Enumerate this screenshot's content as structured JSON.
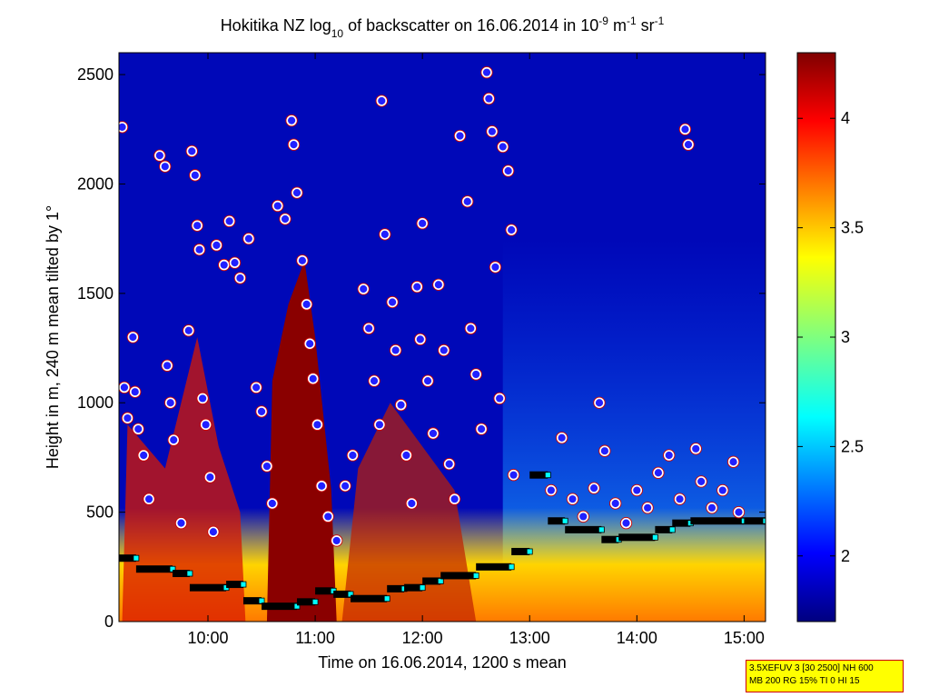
{
  "chart_data": {
    "type": "heatmap",
    "title": {
      "pre": "Hokitika NZ log",
      "sub": "10",
      "mid": " of backscatter on 16.06.2014 in 10",
      "sup1": "-9",
      "post1": " m",
      "sup2": "-1",
      "post2": " sr",
      "sup3": "-1"
    },
    "xlabel": "Time on 16.06.2014, 1200 s mean",
    "ylabel": "Height in m, 240 m mean tilted by 1°",
    "xlim": [
      9.17,
      15.2
    ],
    "ylim": [
      0,
      2600
    ],
    "x_ticks": [
      {
        "value": 10,
        "label": "10:00"
      },
      {
        "value": 11,
        "label": "11:00"
      },
      {
        "value": 12,
        "label": "12:00"
      },
      {
        "value": 13,
        "label": "13:00"
      },
      {
        "value": 14,
        "label": "14:00"
      },
      {
        "value": 15,
        "label": "15:00"
      }
    ],
    "y_ticks": [
      0,
      500,
      1000,
      1500,
      2000,
      2500
    ],
    "colorbar": {
      "range": [
        1.7,
        4.3
      ],
      "ticks": [
        {
          "value": 2,
          "label": "2"
        },
        {
          "value": 2.5,
          "label": "2.5"
        },
        {
          "value": 3,
          "label": "3"
        },
        {
          "value": 3.5,
          "label": "3.5"
        },
        {
          "value": 4,
          "label": "4"
        }
      ]
    },
    "mixing_layer": [
      {
        "x0": 9.17,
        "x1": 9.33,
        "h": 290
      },
      {
        "x0": 9.33,
        "x1": 9.67,
        "h": 240
      },
      {
        "x0": 9.67,
        "x1": 9.83,
        "h": 220
      },
      {
        "x0": 9.83,
        "x1": 10.17,
        "h": 155
      },
      {
        "x0": 10.17,
        "x1": 10.33,
        "h": 170
      },
      {
        "x0": 10.33,
        "x1": 10.5,
        "h": 95
      },
      {
        "x0": 10.5,
        "x1": 10.83,
        "h": 70
      },
      {
        "x0": 10.83,
        "x1": 11.0,
        "h": 90
      },
      {
        "x0": 11.0,
        "x1": 11.17,
        "h": 140
      },
      {
        "x0": 11.17,
        "x1": 11.33,
        "h": 125
      },
      {
        "x0": 11.33,
        "x1": 11.67,
        "h": 105
      },
      {
        "x0": 11.67,
        "x1": 11.83,
        "h": 150
      },
      {
        "x0": 11.83,
        "x1": 12.0,
        "h": 155
      },
      {
        "x0": 12.0,
        "x1": 12.17,
        "h": 185
      },
      {
        "x0": 12.17,
        "x1": 12.5,
        "h": 210
      },
      {
        "x0": 12.5,
        "x1": 12.83,
        "h": 250
      },
      {
        "x0": 12.83,
        "x1": 13.0,
        "h": 320
      },
      {
        "x0": 13.0,
        "x1": 13.17,
        "h": 670
      },
      {
        "x0": 13.17,
        "x1": 13.33,
        "h": 460
      },
      {
        "x0": 13.33,
        "x1": 13.67,
        "h": 420
      },
      {
        "x0": 13.67,
        "x1": 13.83,
        "h": 375
      },
      {
        "x0": 13.83,
        "x1": 14.17,
        "h": 385
      },
      {
        "x0": 14.17,
        "x1": 14.33,
        "h": 420
      },
      {
        "x0": 14.33,
        "x1": 14.5,
        "h": 450
      },
      {
        "x0": 14.5,
        "x1": 15.0,
        "h": 460
      },
      {
        "x0": 15.0,
        "x1": 15.2,
        "h": 460
      }
    ],
    "cloud_points": [
      {
        "x": 9.2,
        "y": 2260
      },
      {
        "x": 9.22,
        "y": 1070
      },
      {
        "x": 9.25,
        "y": 930
      },
      {
        "x": 9.3,
        "y": 1300
      },
      {
        "x": 9.32,
        "y": 1050
      },
      {
        "x": 9.35,
        "y": 880
      },
      {
        "x": 9.4,
        "y": 760
      },
      {
        "x": 9.45,
        "y": 560
      },
      {
        "x": 9.55,
        "y": 2130
      },
      {
        "x": 9.6,
        "y": 2080
      },
      {
        "x": 9.62,
        "y": 1170
      },
      {
        "x": 9.65,
        "y": 1000
      },
      {
        "x": 9.68,
        "y": 830
      },
      {
        "x": 9.75,
        "y": 450
      },
      {
        "x": 9.82,
        "y": 1330
      },
      {
        "x": 9.85,
        "y": 2150
      },
      {
        "x": 9.88,
        "y": 2040
      },
      {
        "x": 9.9,
        "y": 1810
      },
      {
        "x": 9.92,
        "y": 1700
      },
      {
        "x": 9.95,
        "y": 1020
      },
      {
        "x": 9.98,
        "y": 900
      },
      {
        "x": 10.02,
        "y": 660
      },
      {
        "x": 10.05,
        "y": 410
      },
      {
        "x": 10.08,
        "y": 1720
      },
      {
        "x": 10.15,
        "y": 1630
      },
      {
        "x": 10.2,
        "y": 1830
      },
      {
        "x": 10.25,
        "y": 1640
      },
      {
        "x": 10.3,
        "y": 1570
      },
      {
        "x": 10.38,
        "y": 1750
      },
      {
        "x": 10.45,
        "y": 1070
      },
      {
        "x": 10.5,
        "y": 960
      },
      {
        "x": 10.55,
        "y": 710
      },
      {
        "x": 10.6,
        "y": 540
      },
      {
        "x": 10.65,
        "y": 1900
      },
      {
        "x": 10.72,
        "y": 1840
      },
      {
        "x": 10.78,
        "y": 2290
      },
      {
        "x": 10.8,
        "y": 2180
      },
      {
        "x": 10.83,
        "y": 1960
      },
      {
        "x": 10.88,
        "y": 1650
      },
      {
        "x": 10.92,
        "y": 1450
      },
      {
        "x": 10.95,
        "y": 1270
      },
      {
        "x": 10.98,
        "y": 1110
      },
      {
        "x": 11.02,
        "y": 900
      },
      {
        "x": 11.06,
        "y": 620
      },
      {
        "x": 11.12,
        "y": 480
      },
      {
        "x": 11.2,
        "y": 370
      },
      {
        "x": 11.28,
        "y": 620
      },
      {
        "x": 11.35,
        "y": 760
      },
      {
        "x": 11.45,
        "y": 1520
      },
      {
        "x": 11.5,
        "y": 1340
      },
      {
        "x": 11.55,
        "y": 1100
      },
      {
        "x": 11.6,
        "y": 900
      },
      {
        "x": 11.62,
        "y": 2380
      },
      {
        "x": 11.65,
        "y": 1770
      },
      {
        "x": 11.72,
        "y": 1460
      },
      {
        "x": 11.75,
        "y": 1240
      },
      {
        "x": 11.8,
        "y": 990
      },
      {
        "x": 11.85,
        "y": 760
      },
      {
        "x": 11.9,
        "y": 540
      },
      {
        "x": 11.95,
        "y": 1530
      },
      {
        "x": 11.98,
        "y": 1290
      },
      {
        "x": 12.0,
        "y": 1820
      },
      {
        "x": 12.05,
        "y": 1100
      },
      {
        "x": 12.1,
        "y": 860
      },
      {
        "x": 12.15,
        "y": 1540
      },
      {
        "x": 12.2,
        "y": 1240
      },
      {
        "x": 12.25,
        "y": 720
      },
      {
        "x": 12.3,
        "y": 560
      },
      {
        "x": 12.35,
        "y": 2220
      },
      {
        "x": 12.42,
        "y": 1920
      },
      {
        "x": 12.45,
        "y": 1340
      },
      {
        "x": 12.5,
        "y": 1130
      },
      {
        "x": 12.55,
        "y": 880
      },
      {
        "x": 12.6,
        "y": 2510
      },
      {
        "x": 12.62,
        "y": 2390
      },
      {
        "x": 12.65,
        "y": 2240
      },
      {
        "x": 12.68,
        "y": 1620
      },
      {
        "x": 12.72,
        "y": 1020
      },
      {
        "x": 12.75,
        "y": 2170
      },
      {
        "x": 12.8,
        "y": 2060
      },
      {
        "x": 12.83,
        "y": 1790
      },
      {
        "x": 12.85,
        "y": 670
      },
      {
        "x": 13.2,
        "y": 600
      },
      {
        "x": 13.3,
        "y": 840
      },
      {
        "x": 13.4,
        "y": 560
      },
      {
        "x": 13.5,
        "y": 480
      },
      {
        "x": 13.6,
        "y": 610
      },
      {
        "x": 13.65,
        "y": 1000
      },
      {
        "x": 13.7,
        "y": 780
      },
      {
        "x": 13.8,
        "y": 540
      },
      {
        "x": 13.9,
        "y": 450
      },
      {
        "x": 14.0,
        "y": 600
      },
      {
        "x": 14.1,
        "y": 520
      },
      {
        "x": 14.2,
        "y": 680
      },
      {
        "x": 14.3,
        "y": 760
      },
      {
        "x": 14.4,
        "y": 560
      },
      {
        "x": 14.45,
        "y": 2250
      },
      {
        "x": 14.48,
        "y": 2180
      },
      {
        "x": 14.55,
        "y": 790
      },
      {
        "x": 14.6,
        "y": 640
      },
      {
        "x": 14.7,
        "y": 520
      },
      {
        "x": 14.8,
        "y": 600
      },
      {
        "x": 14.9,
        "y": 730
      },
      {
        "x": 14.95,
        "y": 500
      }
    ],
    "info_box": [
      "3.5XEFUV 3 [30 2500] NH 600",
      "MB 200 RG 15% TI 0 HI 15"
    ]
  }
}
